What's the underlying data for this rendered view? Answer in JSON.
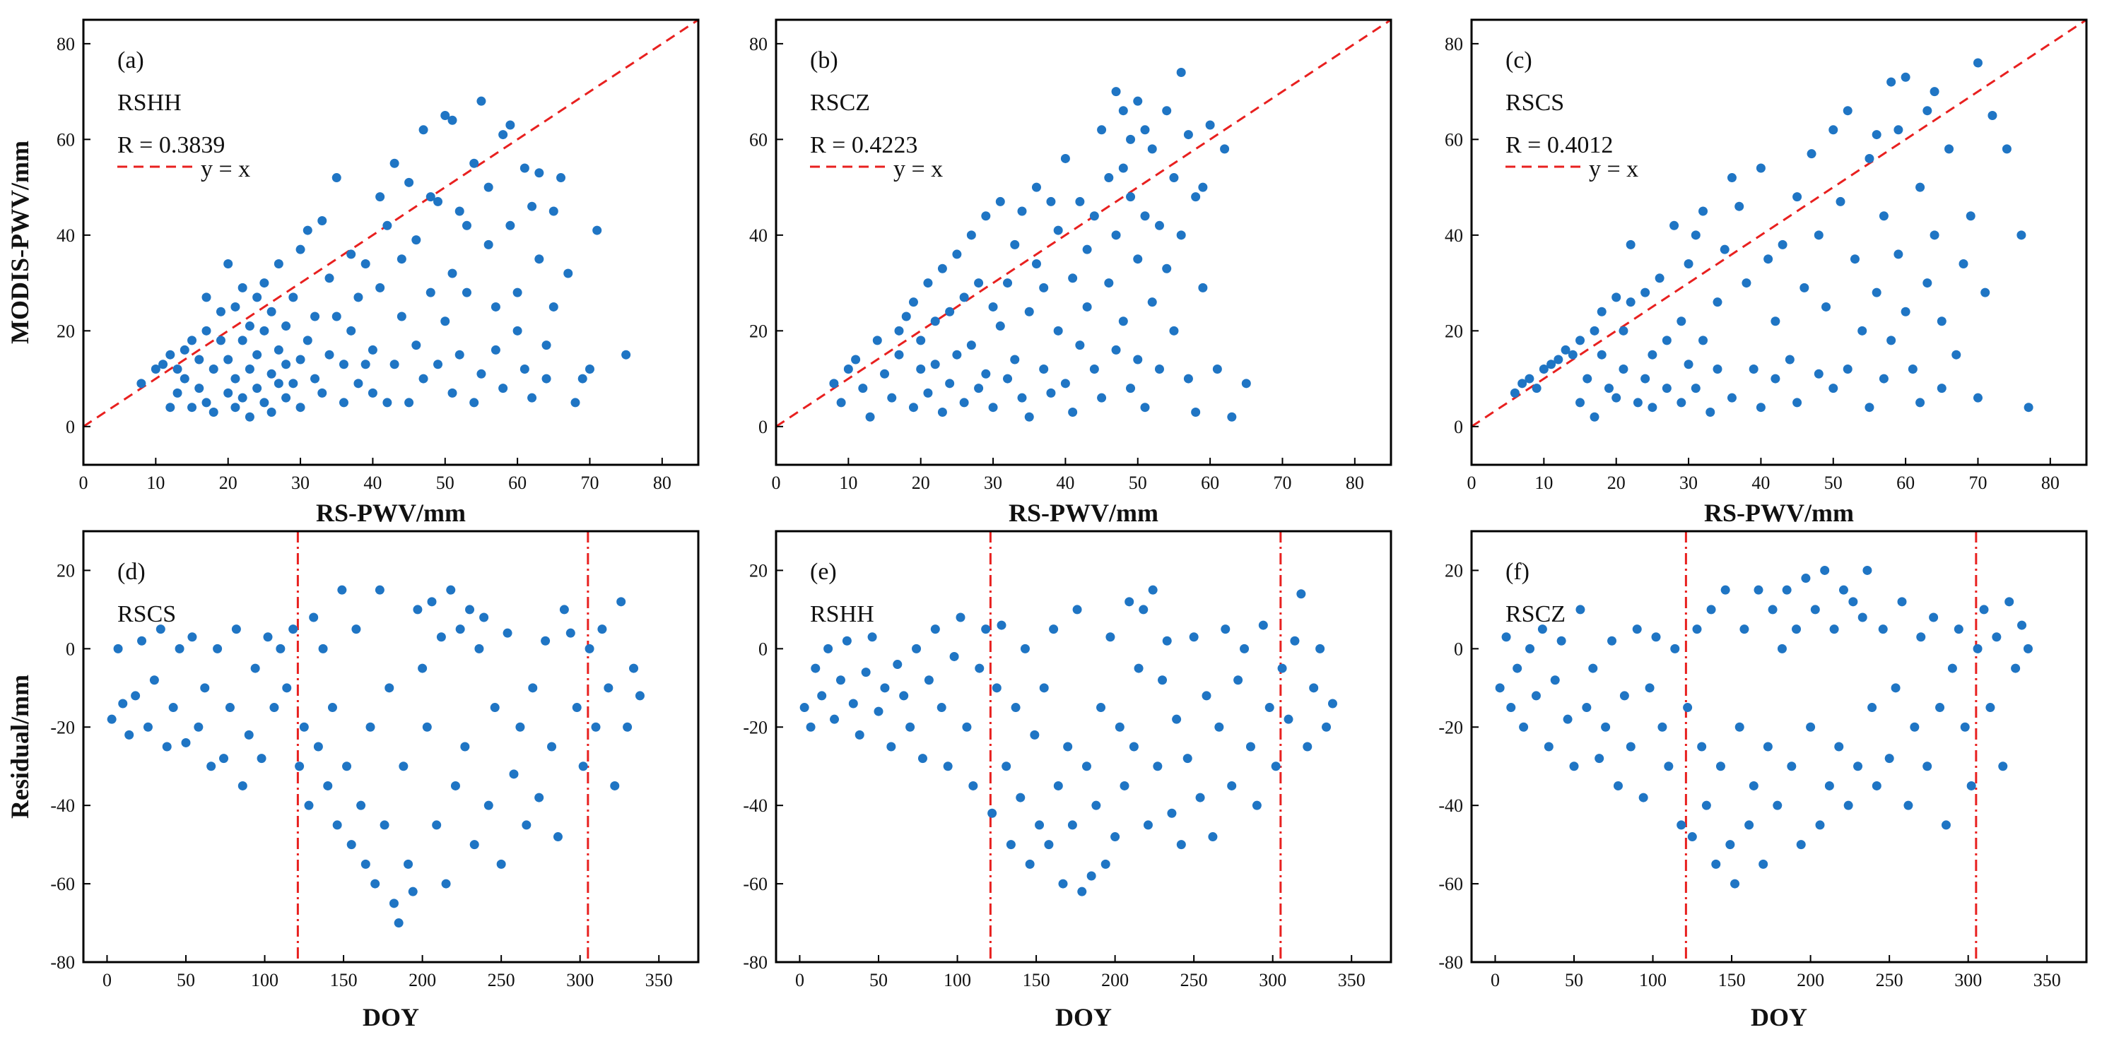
{
  "colors": {
    "point": "#1f75c4",
    "reference_line": "#e8201f",
    "axis": "#000000"
  },
  "labels": {
    "x_top": "RS-PWV/mm",
    "y_top": "MODIS-PWV/mm",
    "x_bottom": "DOY",
    "y_bottom": "Residual/mm"
  },
  "chart_data": [
    {
      "type": "scatter",
      "panel": "(a)",
      "station": "RSHH",
      "r_text": "R = 0.3839",
      "legend": "y = x",
      "legend_position": "top-left",
      "reference": "y = x",
      "xlim": [
        0,
        85
      ],
      "ylim": [
        -8,
        85
      ],
      "xticks": [
        0,
        10,
        20,
        30,
        40,
        50,
        60,
        70,
        80
      ],
      "yticks": [
        0,
        20,
        40,
        60,
        80
      ],
      "x": [
        8,
        10,
        11,
        12,
        12,
        13,
        13,
        14,
        14,
        15,
        15,
        16,
        16,
        17,
        17,
        17,
        18,
        18,
        19,
        19,
        20,
        20,
        20,
        21,
        21,
        21,
        22,
        22,
        22,
        23,
        23,
        23,
        24,
        24,
        24,
        25,
        25,
        25,
        26,
        26,
        26,
        27,
        27,
        27,
        28,
        28,
        28,
        29,
        29,
        30,
        30,
        30,
        31,
        31,
        32,
        32,
        33,
        33,
        34,
        34,
        35,
        35,
        36,
        36,
        37,
        37,
        38,
        38,
        39,
        39,
        40,
        40,
        41,
        41,
        42,
        42,
        43,
        43,
        44,
        44,
        45,
        45,
        46,
        46,
        47,
        47,
        48,
        48,
        49,
        49,
        50,
        50,
        51,
        51,
        51,
        52,
        52,
        53,
        53,
        54,
        54,
        55,
        55,
        56,
        56,
        57,
        57,
        58,
        58,
        59,
        59,
        60,
        60,
        61,
        61,
        62,
        62,
        63,
        63,
        64,
        64,
        65,
        65,
        66,
        67,
        68,
        69,
        70,
        71,
        75
      ],
      "y": [
        9,
        12,
        13,
        4,
        15,
        7,
        12,
        16,
        10,
        4,
        18,
        14,
        8,
        20,
        5,
        27,
        12,
        3,
        18,
        24,
        7,
        14,
        34,
        10,
        25,
        4,
        6,
        18,
        29,
        12,
        2,
        21,
        8,
        27,
        15,
        5,
        20,
        30,
        11,
        24,
        3,
        16,
        9,
        34,
        6,
        21,
        13,
        27,
        9,
        37,
        14,
        4,
        18,
        41,
        10,
        23,
        43,
        7,
        15,
        31,
        23,
        52,
        13,
        5,
        20,
        36,
        9,
        27,
        34,
        13,
        16,
        7,
        48,
        29,
        42,
        5,
        55,
        13,
        23,
        35,
        51,
        5,
        17,
        39,
        10,
        62,
        28,
        48,
        13,
        47,
        22,
        65,
        64,
        7,
        32,
        45,
        15,
        42,
        28,
        55,
        5,
        68,
        11,
        38,
        50,
        25,
        16,
        61,
        8,
        63,
        42,
        20,
        28,
        54,
        12,
        46,
        6,
        53,
        35,
        10,
        17,
        45,
        25,
        52,
        32,
        5,
        10,
        12,
        41,
        15
      ]
    },
    {
      "type": "scatter",
      "panel": "(b)",
      "station": "RSCZ",
      "r_text": "R = 0.4223",
      "legend": "y = x",
      "legend_position": "top-left",
      "reference": "y = x",
      "xlim": [
        0,
        85
      ],
      "ylim": [
        -8,
        85
      ],
      "xticks": [
        0,
        10,
        20,
        30,
        40,
        50,
        60,
        70,
        80
      ],
      "yticks": [
        0,
        20,
        40,
        60,
        80
      ],
      "x": [
        8,
        9,
        10,
        11,
        12,
        13,
        14,
        15,
        16,
        17,
        17,
        18,
        19,
        19,
        20,
        20,
        21,
        21,
        22,
        22,
        23,
        23,
        24,
        24,
        25,
        25,
        26,
        26,
        27,
        27,
        28,
        28,
        29,
        29,
        30,
        30,
        31,
        31,
        32,
        32,
        33,
        33,
        34,
        34,
        35,
        35,
        36,
        36,
        37,
        37,
        38,
        38,
        39,
        39,
        40,
        40,
        41,
        41,
        42,
        42,
        43,
        43,
        44,
        44,
        45,
        45,
        46,
        46,
        47,
        47,
        47,
        48,
        48,
        48,
        49,
        49,
        49,
        50,
        50,
        50,
        51,
        51,
        51,
        52,
        52,
        53,
        53,
        54,
        54,
        55,
        55,
        56,
        56,
        57,
        57,
        58,
        58,
        59,
        59,
        60,
        61,
        62,
        63,
        65
      ],
      "y": [
        9,
        5,
        12,
        14,
        8,
        2,
        18,
        11,
        6,
        20,
        15,
        23,
        4,
        26,
        12,
        18,
        30,
        7,
        22,
        13,
        33,
        3,
        24,
        9,
        36,
        15,
        27,
        5,
        40,
        17,
        30,
        8,
        44,
        11,
        25,
        4,
        47,
        21,
        30,
        10,
        14,
        38,
        45,
        6,
        24,
        2,
        50,
        34,
        12,
        29,
        47,
        7,
        20,
        41,
        56,
        9,
        31,
        3,
        47,
        17,
        37,
        25,
        44,
        12,
        62,
        6,
        52,
        30,
        70,
        16,
        40,
        66,
        22,
        54,
        48,
        8,
        60,
        35,
        68,
        14,
        62,
        4,
        44,
        58,
        26,
        42,
        12,
        66,
        33,
        52,
        20,
        74,
        40,
        10,
        61,
        48,
        3,
        50,
        29,
        63,
        12,
        58,
        2,
        9
      ]
    },
    {
      "type": "scatter",
      "panel": "(c)",
      "station": "RSCS",
      "r_text": "R = 0.4012",
      "legend": "y = x",
      "legend_position": "top-left",
      "reference": "y = x",
      "xlim": [
        0,
        85
      ],
      "ylim": [
        -8,
        85
      ],
      "xticks": [
        0,
        10,
        20,
        30,
        40,
        50,
        60,
        70,
        80
      ],
      "yticks": [
        0,
        20,
        40,
        60,
        80
      ],
      "x": [
        6,
        7,
        8,
        9,
        10,
        11,
        12,
        13,
        14,
        15,
        15,
        16,
        17,
        17,
        18,
        18,
        19,
        20,
        20,
        21,
        21,
        22,
        22,
        23,
        24,
        24,
        25,
        25,
        26,
        27,
        27,
        28,
        29,
        29,
        30,
        30,
        31,
        31,
        32,
        32,
        33,
        34,
        34,
        35,
        36,
        36,
        37,
        38,
        39,
        40,
        40,
        41,
        42,
        42,
        43,
        44,
        45,
        45,
        46,
        47,
        48,
        48,
        49,
        50,
        50,
        51,
        52,
        52,
        53,
        54,
        55,
        55,
        56,
        56,
        57,
        57,
        58,
        58,
        59,
        59,
        60,
        60,
        61,
        62,
        62,
        63,
        63,
        64,
        64,
        65,
        65,
        66,
        67,
        68,
        69,
        70,
        70,
        71,
        72,
        74,
        76,
        77
      ],
      "y": [
        7,
        9,
        10,
        8,
        12,
        13,
        14,
        16,
        15,
        18,
        5,
        10,
        20,
        2,
        24,
        15,
        8,
        27,
        6,
        20,
        12,
        38,
        26,
        5,
        28,
        10,
        15,
        4,
        31,
        18,
        8,
        42,
        22,
        5,
        34,
        13,
        40,
        8,
        18,
        45,
        3,
        26,
        12,
        37,
        52,
        6,
        46,
        30,
        12,
        54,
        4,
        35,
        22,
        10,
        38,
        14,
        48,
        5,
        29,
        57,
        11,
        40,
        25,
        62,
        8,
        47,
        66,
        12,
        35,
        20,
        56,
        4,
        61,
        28,
        44,
        10,
        72,
        18,
        62,
        36,
        24,
        73,
        12,
        50,
        5,
        66,
        30,
        40,
        70,
        8,
        22,
        58,
        15,
        34,
        44,
        76,
        6,
        28,
        65,
        58,
        40,
        4
      ]
    },
    {
      "type": "scatter",
      "panel": "(d)",
      "station": "RSCS",
      "reference": "DOY 121 and DOY 305 (dash-dot)",
      "vlines": [
        121,
        305
      ],
      "xlim": [
        -15,
        375
      ],
      "ylim": [
        -80,
        30
      ],
      "xticks": [
        0,
        50,
        100,
        150,
        200,
        250,
        300,
        350
      ],
      "yticks": [
        -80,
        -60,
        -40,
        -20,
        0,
        20
      ],
      "x": [
        3,
        7,
        10,
        14,
        18,
        22,
        26,
        30,
        34,
        38,
        42,
        46,
        50,
        54,
        58,
        62,
        66,
        70,
        74,
        78,
        82,
        86,
        90,
        94,
        98,
        102,
        106,
        110,
        114,
        118,
        122,
        125,
        128,
        131,
        134,
        137,
        140,
        143,
        146,
        149,
        152,
        155,
        158,
        161,
        164,
        167,
        170,
        173,
        176,
        179,
        182,
        185,
        188,
        191,
        194,
        197,
        200,
        203,
        206,
        209,
        212,
        215,
        218,
        221,
        224,
        227,
        230,
        233,
        236,
        239,
        242,
        246,
        250,
        254,
        258,
        262,
        266,
        270,
        274,
        278,
        282,
        286,
        290,
        294,
        298,
        302,
        306,
        310,
        314,
        318,
        322,
        326,
        330,
        334,
        338
      ],
      "y": [
        -18,
        0,
        -14,
        -22,
        -12,
        2,
        -20,
        -8,
        5,
        -25,
        -15,
        0,
        -24,
        3,
        -20,
        -10,
        -30,
        0,
        -28,
        -15,
        5,
        -35,
        -22,
        -5,
        -28,
        3,
        -15,
        0,
        -10,
        5,
        -30,
        -20,
        -40,
        8,
        -25,
        0,
        -35,
        -15,
        -45,
        15,
        -30,
        -50,
        5,
        -40,
        -55,
        -20,
        -60,
        15,
        -45,
        -10,
        -65,
        -70,
        -30,
        -55,
        -62,
        10,
        -5,
        -20,
        12,
        -45,
        3,
        -60,
        15,
        -35,
        5,
        -25,
        10,
        -50,
        0,
        8,
        -40,
        -15,
        -55,
        4,
        -32,
        -20,
        -45,
        -10,
        -38,
        2,
        -25,
        -48,
        10,
        4,
        -15,
        -30,
        0,
        -20,
        5,
        -10,
        -35,
        12,
        -20,
        -5,
        -12
      ]
    },
    {
      "type": "scatter",
      "panel": "(e)",
      "station": "RSHH",
      "reference": "DOY 121 and DOY 305 (dash-dot)",
      "vlines": [
        121,
        305
      ],
      "xlim": [
        -15,
        375
      ],
      "ylim": [
        -80,
        30
      ],
      "xticks": [
        0,
        50,
        100,
        150,
        200,
        250,
        300,
        350
      ],
      "yticks": [
        -80,
        -60,
        -40,
        -20,
        0,
        20
      ],
      "x": [
        3,
        7,
        10,
        14,
        18,
        22,
        26,
        30,
        34,
        38,
        42,
        46,
        50,
        54,
        58,
        62,
        66,
        70,
        74,
        78,
        82,
        86,
        90,
        94,
        98,
        102,
        106,
        110,
        114,
        118,
        122,
        125,
        128,
        131,
        134,
        137,
        140,
        143,
        146,
        149,
        152,
        155,
        158,
        161,
        164,
        167,
        170,
        173,
        176,
        179,
        182,
        185,
        188,
        191,
        194,
        197,
        200,
        203,
        206,
        209,
        212,
        215,
        218,
        221,
        224,
        227,
        230,
        233,
        236,
        239,
        242,
        246,
        250,
        254,
        258,
        262,
        266,
        270,
        274,
        278,
        282,
        286,
        290,
        294,
        298,
        302,
        306,
        310,
        314,
        318,
        322,
        326,
        330,
        334,
        338
      ],
      "y": [
        -15,
        -20,
        -5,
        -12,
        0,
        -18,
        -8,
        2,
        -14,
        -22,
        -6,
        3,
        -16,
        -10,
        -25,
        -4,
        -12,
        -20,
        0,
        -28,
        -8,
        5,
        -15,
        -30,
        -2,
        8,
        -20,
        -35,
        -5,
        5,
        -42,
        -10,
        6,
        -30,
        -50,
        -15,
        -38,
        0,
        -55,
        -22,
        -45,
        -10,
        -50,
        5,
        -35,
        -60,
        -25,
        -45,
        10,
        -62,
        -30,
        -58,
        -40,
        -15,
        -55,
        3,
        -48,
        -20,
        -35,
        12,
        -25,
        -5,
        10,
        -45,
        15,
        -30,
        -8,
        2,
        -42,
        -18,
        -50,
        -28,
        3,
        -38,
        -12,
        -48,
        -20,
        5,
        -35,
        -8,
        0,
        -25,
        -40,
        6,
        -15,
        -30,
        -5,
        -18,
        2,
        14,
        -25,
        -10,
        0,
        -20,
        -14
      ]
    },
    {
      "type": "scatter",
      "panel": "(f)",
      "station": "RSCZ",
      "reference": "DOY 121 and DOY 305 (dash-dot)",
      "vlines": [
        121,
        305
      ],
      "xlim": [
        -15,
        375
      ],
      "ylim": [
        -80,
        30
      ],
      "xticks": [
        0,
        50,
        100,
        150,
        200,
        250,
        300,
        350
      ],
      "yticks": [
        -80,
        -60,
        -40,
        -20,
        0,
        20
      ],
      "x": [
        3,
        7,
        10,
        14,
        18,
        22,
        26,
        30,
        34,
        38,
        42,
        46,
        50,
        54,
        58,
        62,
        66,
        70,
        74,
        78,
        82,
        86,
        90,
        94,
        98,
        102,
        106,
        110,
        114,
        118,
        122,
        125,
        128,
        131,
        134,
        137,
        140,
        143,
        146,
        149,
        152,
        155,
        158,
        161,
        164,
        167,
        170,
        173,
        176,
        179,
        182,
        185,
        188,
        191,
        194,
        197,
        200,
        203,
        206,
        209,
        212,
        215,
        218,
        221,
        224,
        227,
        230,
        233,
        236,
        239,
        242,
        246,
        250,
        254,
        258,
        262,
        266,
        270,
        274,
        278,
        282,
        286,
        290,
        294,
        298,
        302,
        306,
        310,
        314,
        318,
        322,
        326,
        330,
        334,
        338
      ],
      "y": [
        -10,
        3,
        -15,
        -5,
        -20,
        0,
        -12,
        5,
        -25,
        -8,
        2,
        -18,
        -30,
        10,
        -15,
        -5,
        -28,
        -20,
        2,
        -35,
        -12,
        -25,
        5,
        -38,
        -10,
        3,
        -20,
        -30,
        0,
        -45,
        -15,
        -48,
        5,
        -25,
        -40,
        10,
        -55,
        -30,
        15,
        -50,
        -60,
        -20,
        5,
        -45,
        -35,
        15,
        -55,
        -25,
        10,
        -40,
        0,
        15,
        -30,
        5,
        -50,
        18,
        -20,
        10,
        -45,
        20,
        -35,
        5,
        -25,
        15,
        -40,
        12,
        -30,
        8,
        20,
        -15,
        -35,
        5,
        -28,
        -10,
        12,
        -40,
        -20,
        3,
        -30,
        8,
        -15,
        -45,
        -5,
        5,
        -20,
        -35,
        0,
        10,
        -15,
        3,
        -30,
        12,
        -5,
        6,
        0
      ]
    }
  ]
}
